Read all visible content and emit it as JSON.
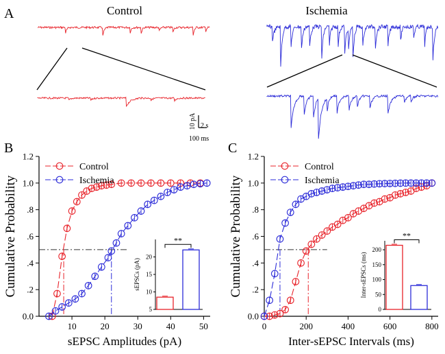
{
  "panel_a": {
    "letter": "A",
    "control_title": "Control",
    "ischemia_title": "Ischemia",
    "scale_current": "10 pA",
    "scale_time_long": "2 s",
    "scale_time_short": "100 ms",
    "colors": {
      "control": "#e8232a",
      "ischemia": "#2b2bd8"
    }
  },
  "chart_data": [
    {
      "type": "line",
      "panel": "B",
      "title": "",
      "xlabel": "sEPSC Amplitudes (pA)",
      "ylabel": "Cumulative Probability",
      "xlim": [
        0,
        52
      ],
      "ylim": [
        0,
        1.2
      ],
      "x_ticks": [
        10,
        20,
        30,
        40,
        50
      ],
      "y_ticks": [
        0,
        0.2,
        0.4,
        0.6,
        0.8,
        1.0,
        1.2
      ],
      "y_tick_labels": [
        "0.0",
        ".2",
        ".4",
        ".6",
        ".8",
        "1.0",
        "1.2"
      ],
      "legend": [
        "Control",
        "Ischemia"
      ],
      "legend_position": "top-left",
      "series": [
        {
          "name": "Control",
          "color": "#e8232a",
          "x": [
            4,
            5.5,
            7,
            8.5,
            10,
            11.5,
            13,
            14.5,
            16,
            17.5,
            19,
            20.5,
            22,
            25,
            28,
            31,
            34,
            37,
            40,
            43,
            46,
            49
          ],
          "y": [
            0.0,
            0.17,
            0.45,
            0.66,
            0.79,
            0.86,
            0.91,
            0.94,
            0.96,
            0.97,
            0.98,
            0.985,
            0.99,
            1.0,
            1.0,
            1.0,
            1.0,
            1.0,
            1.0,
            1.0,
            1.0,
            1.0
          ]
        },
        {
          "name": "Ischemia",
          "color": "#2b2bd8",
          "x": [
            3,
            5,
            7,
            9,
            11,
            13,
            15,
            17,
            19,
            21,
            22,
            23.5,
            25,
            27,
            29,
            31,
            33,
            35,
            37,
            39,
            41,
            43,
            45,
            47,
            49,
            51
          ],
          "y": [
            0.0,
            0.04,
            0.07,
            0.1,
            0.13,
            0.17,
            0.23,
            0.3,
            0.37,
            0.44,
            0.49,
            0.55,
            0.62,
            0.68,
            0.74,
            0.79,
            0.84,
            0.87,
            0.9,
            0.93,
            0.95,
            0.97,
            0.98,
            0.99,
            0.995,
            1.0
          ]
        }
      ],
      "reference": {
        "y": 0.5,
        "control_x": 7.5,
        "ischemia_x": 22
      },
      "inset": {
        "type": "bar",
        "ylabel": "sEPSCs (pA)",
        "categories": [
          "Control",
          "Ischemia"
        ],
        "values": [
          8.5,
          22
        ],
        "ylim": [
          5,
          25
        ],
        "y_ticks": [
          5,
          10,
          15,
          20
        ],
        "significance": "**",
        "colors": [
          "#e8232a",
          "#2b2bd8"
        ]
      }
    },
    {
      "type": "line",
      "panel": "C",
      "title": "",
      "xlabel": "Inter-sEPSC Intervals (ms)",
      "ylabel": "Cumulative Probability",
      "xlim": [
        0,
        830
      ],
      "ylim": [
        0,
        1.2
      ],
      "x_ticks": [
        0,
        200,
        400,
        600,
        800
      ],
      "y_ticks": [
        0,
        0.2,
        0.4,
        0.6,
        0.8,
        1.0,
        1.2
      ],
      "y_tick_labels": [
        "0.0",
        ".2",
        ".4",
        ".6",
        ".8",
        "1.0",
        "1.2"
      ],
      "legend": [
        "Control",
        "Ischemia"
      ],
      "legend_position": "top-left",
      "series": [
        {
          "name": "Control",
          "color": "#e8232a",
          "x": [
            0,
            25,
            50,
            75,
            100,
            125,
            150,
            175,
            200,
            225,
            250,
            275,
            300,
            325,
            350,
            375,
            400,
            425,
            450,
            475,
            500,
            525,
            550,
            575,
            600,
            625,
            650,
            675,
            700,
            725,
            750,
            775,
            800
          ],
          "y": [
            0.0,
            0.0,
            0.01,
            0.02,
            0.05,
            0.12,
            0.26,
            0.4,
            0.49,
            0.54,
            0.58,
            0.61,
            0.64,
            0.67,
            0.69,
            0.72,
            0.74,
            0.77,
            0.79,
            0.81,
            0.83,
            0.85,
            0.86,
            0.88,
            0.89,
            0.91,
            0.92,
            0.93,
            0.94,
            0.96,
            0.97,
            0.98,
            1.0
          ]
        },
        {
          "name": "Ischemia",
          "color": "#2b2bd8",
          "x": [
            0,
            25,
            50,
            75,
            100,
            125,
            150,
            175,
            200,
            225,
            250,
            275,
            300,
            325,
            350,
            375,
            400,
            425,
            450,
            475,
            500,
            525,
            550,
            575,
            600,
            625,
            650,
            675,
            700,
            725,
            750,
            775,
            800
          ],
          "y": [
            0.0,
            0.12,
            0.32,
            0.58,
            0.7,
            0.78,
            0.84,
            0.88,
            0.9,
            0.92,
            0.93,
            0.94,
            0.95,
            0.96,
            0.965,
            0.97,
            0.975,
            0.98,
            0.985,
            0.99,
            0.99,
            0.993,
            0.995,
            0.996,
            0.997,
            0.998,
            0.999,
            1.0,
            1.0,
            1.0,
            1.0,
            1.0,
            1.0
          ]
        }
      ],
      "reference": {
        "y": 0.5,
        "control_x": 210,
        "ischemia_x": 75
      },
      "inset": {
        "type": "bar",
        "ylabel": "Inter-sEPSCs (ms)",
        "categories": [
          "Control",
          "Ischemia"
        ],
        "values": [
          215,
          80
        ],
        "ylim": [
          0,
          230
        ],
        "y_ticks": [
          0,
          50,
          100,
          150,
          200
        ],
        "significance": "**",
        "colors": [
          "#e8232a",
          "#2b2bd8"
        ]
      }
    }
  ]
}
